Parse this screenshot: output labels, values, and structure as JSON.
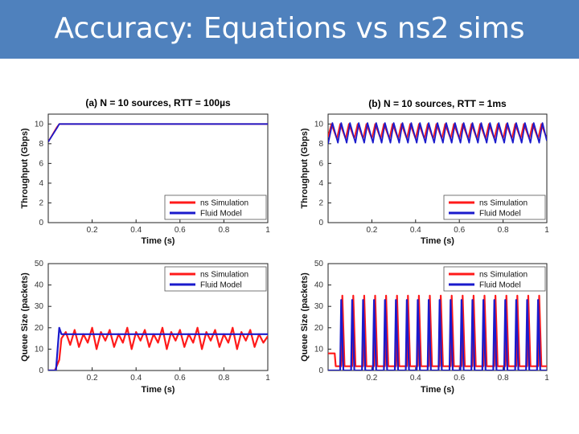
{
  "slide": {
    "title": "Accuracy: Equations vs ns2 sims"
  },
  "colors": {
    "title_bar": "#4f81bd",
    "title_text": "#ffffff",
    "ns": "#ff1a1a",
    "fluid": "#1a1acc"
  },
  "chart_data": [
    {
      "id": "a-throughput",
      "type": "line",
      "title": "(a) N = 10 sources, RTT = 100µs",
      "xlabel": "Time (s)",
      "ylabel": "Throughput (Gbps)",
      "xlim": [
        0,
        1
      ],
      "ylim": [
        0,
        11
      ],
      "xticks": [
        "0.2",
        "0.4",
        "0.6",
        "0.8",
        "1"
      ],
      "yticks": [
        "0",
        "2",
        "4",
        "6",
        "8",
        "10"
      ],
      "legend": [
        "ns Simulation",
        "Fluid Model"
      ],
      "legend_position": "bottom-right",
      "series": [
        {
          "name": "ns Simulation",
          "x": [
            0,
            0.04,
            0.05,
            0.055,
            1
          ],
          "y": [
            8.2,
            9.7,
            10.0,
            10.0,
            10.0
          ]
        },
        {
          "name": "Fluid Model",
          "x": [
            0,
            0.04,
            0.05,
            0.055,
            1
          ],
          "y": [
            8.2,
            9.6,
            10.0,
            10.0,
            10.0
          ]
        }
      ]
    },
    {
      "id": "b-throughput",
      "type": "line",
      "title": "(b) N = 10 sources, RTT = 1ms",
      "xlabel": "Time (s)",
      "ylabel": "Throughput (Gbps)",
      "xlim": [
        0,
        1
      ],
      "ylim": [
        0,
        11
      ],
      "xticks": [
        "0.2",
        "0.4",
        "0.6",
        "0.8",
        "1"
      ],
      "yticks": [
        "0",
        "2",
        "4",
        "6",
        "8",
        "10"
      ],
      "legend": [
        "ns Simulation",
        "Fluid Model"
      ],
      "legend_position": "bottom-right",
      "series": [
        {
          "name": "ns Simulation",
          "x": [
            0,
            0.015,
            0.04,
            0.055,
            0.08,
            0.095,
            0.12,
            0.135,
            0.16,
            0.175,
            0.2,
            0.215,
            0.24,
            0.255,
            0.28,
            0.295,
            0.32,
            0.335,
            0.36,
            0.375,
            0.4,
            0.415,
            0.44,
            0.455,
            0.48,
            0.495,
            0.52,
            0.535,
            0.56,
            0.575,
            0.6,
            0.615,
            0.64,
            0.655,
            0.68,
            0.695,
            0.72,
            0.735,
            0.76,
            0.775,
            0.8,
            0.815,
            0.84,
            0.855,
            0.88,
            0.895,
            0.92,
            0.935,
            0.96,
            0.975,
            1.0
          ],
          "y": [
            8.7,
            10.0,
            8.5,
            10.0,
            8.5,
            10.0,
            8.5,
            10.0,
            8.5,
            10.0,
            8.5,
            10.0,
            8.5,
            10.0,
            8.5,
            10.0,
            8.5,
            10.0,
            8.5,
            10.0,
            8.5,
            10.0,
            8.5,
            10.0,
            8.5,
            10.0,
            8.5,
            10.0,
            8.5,
            10.0,
            8.5,
            10.0,
            8.5,
            10.0,
            8.5,
            10.0,
            8.5,
            10.0,
            8.5,
            10.0,
            8.5,
            10.0,
            8.5,
            10.0,
            8.5,
            10.0,
            8.5,
            10.0,
            8.5,
            10.0,
            8.5
          ]
        },
        {
          "name": "Fluid Model",
          "x": [
            0,
            0.02,
            0.045,
            0.06,
            0.085,
            0.1,
            0.125,
            0.14,
            0.165,
            0.18,
            0.205,
            0.22,
            0.245,
            0.26,
            0.285,
            0.3,
            0.325,
            0.34,
            0.365,
            0.38,
            0.405,
            0.42,
            0.445,
            0.46,
            0.485,
            0.5,
            0.525,
            0.54,
            0.565,
            0.58,
            0.605,
            0.62,
            0.645,
            0.66,
            0.685,
            0.7,
            0.725,
            0.74,
            0.765,
            0.78,
            0.805,
            0.82,
            0.845,
            0.86,
            0.885,
            0.9,
            0.925,
            0.94,
            0.965,
            0.98,
            1.0
          ],
          "y": [
            8.0,
            10.1,
            8.1,
            10.1,
            8.1,
            10.1,
            8.1,
            10.1,
            8.1,
            10.1,
            8.1,
            10.1,
            8.1,
            10.1,
            8.1,
            10.1,
            8.1,
            10.1,
            8.1,
            10.1,
            8.1,
            10.1,
            8.1,
            10.1,
            8.1,
            10.1,
            8.1,
            10.1,
            8.1,
            10.1,
            8.1,
            10.1,
            8.1,
            10.1,
            8.1,
            10.1,
            8.1,
            10.1,
            8.1,
            10.1,
            8.1,
            10.1,
            8.1,
            10.1,
            8.1,
            10.1,
            8.1,
            10.1,
            8.1,
            10.1,
            8.3
          ]
        }
      ]
    },
    {
      "id": "a-queue",
      "type": "line",
      "title": "",
      "xlabel": "Time (s)",
      "ylabel": "Queue Size (packets)",
      "xlim": [
        0,
        1
      ],
      "ylim": [
        0,
        50
      ],
      "xticks": [
        "0.2",
        "0.4",
        "0.6",
        "0.8",
        "1"
      ],
      "yticks": [
        "0",
        "10",
        "20",
        "30",
        "40",
        "50"
      ],
      "legend": [
        "ns Simulation",
        "Fluid Model"
      ],
      "legend_position": "top-right",
      "series": [
        {
          "name": "ns Simulation",
          "x": [
            0,
            0.03,
            0.05,
            0.06,
            0.08,
            0.1,
            0.12,
            0.14,
            0.16,
            0.18,
            0.2,
            0.22,
            0.24,
            0.26,
            0.28,
            0.3,
            0.32,
            0.34,
            0.36,
            0.38,
            0.4,
            0.42,
            0.44,
            0.46,
            0.48,
            0.5,
            0.52,
            0.54,
            0.56,
            0.58,
            0.6,
            0.62,
            0.64,
            0.66,
            0.68,
            0.7,
            0.72,
            0.74,
            0.76,
            0.78,
            0.8,
            0.82,
            0.84,
            0.86,
            0.88,
            0.9,
            0.92,
            0.94,
            0.96,
            0.98,
            1.0
          ],
          "y": [
            0,
            0,
            5,
            15,
            18,
            12,
            19,
            11,
            17,
            13,
            20,
            10,
            18,
            14,
            19,
            11,
            17,
            13,
            20,
            10,
            18,
            14,
            19,
            11,
            17,
            13,
            20,
            10,
            18,
            14,
            19,
            11,
            17,
            13,
            20,
            10,
            18,
            14,
            19,
            11,
            17,
            13,
            20,
            10,
            18,
            14,
            19,
            11,
            17,
            13,
            16
          ]
        },
        {
          "name": "Fluid Model",
          "x": [
            0,
            0.035,
            0.05,
            0.06,
            0.07,
            1.0
          ],
          "y": [
            0,
            0,
            20,
            17,
            17,
            17
          ]
        }
      ]
    },
    {
      "id": "b-queue",
      "type": "line",
      "title": "",
      "xlabel": "Time (s)",
      "ylabel": "Queue Size (packets)",
      "xlim": [
        0,
        1
      ],
      "ylim": [
        0,
        50
      ],
      "xticks": [
        "0.2",
        "0.4",
        "0.6",
        "0.8",
        "1"
      ],
      "yticks": [
        "0",
        "10",
        "20",
        "30",
        "40",
        "50"
      ],
      "legend": [
        "ns Simulation",
        "Fluid Model"
      ],
      "legend_position": "top-right",
      "series": [
        {
          "name": "ns Simulation",
          "x": [
            0,
            0.03,
            0.035,
            0.06,
            0.065,
            0.075,
            0.085,
            0.11,
            0.115,
            0.125,
            0.135,
            0.16,
            0.165,
            0.175,
            0.185,
            0.21,
            0.215,
            0.225,
            0.235,
            0.26,
            0.265,
            0.275,
            0.285,
            0.31,
            0.315,
            0.325,
            0.335,
            0.36,
            0.365,
            0.375,
            0.385,
            0.41,
            0.415,
            0.425,
            0.435,
            0.46,
            0.465,
            0.475,
            0.485,
            0.51,
            0.515,
            0.525,
            0.535,
            0.56,
            0.565,
            0.575,
            0.585,
            0.61,
            0.615,
            0.625,
            0.635,
            0.66,
            0.665,
            0.675,
            0.685,
            0.71,
            0.715,
            0.725,
            0.735,
            0.76,
            0.765,
            0.775,
            0.785,
            0.81,
            0.815,
            0.825,
            0.835,
            0.86,
            0.865,
            0.875,
            0.885,
            0.91,
            0.915,
            0.925,
            0.935,
            0.96,
            0.965,
            0.975,
            0.985,
            1.0
          ],
          "y": [
            8,
            8,
            2,
            2,
            35,
            2,
            2,
            2,
            35,
            2,
            2,
            2,
            35,
            2,
            2,
            2,
            35,
            2,
            2,
            2,
            35,
            2,
            2,
            2,
            35,
            2,
            2,
            2,
            35,
            2,
            2,
            2,
            35,
            2,
            2,
            2,
            35,
            2,
            2,
            2,
            35,
            2,
            2,
            2,
            35,
            2,
            2,
            2,
            35,
            2,
            2,
            2,
            35,
            2,
            2,
            2,
            35,
            2,
            2,
            2,
            35,
            2,
            2,
            2,
            35,
            2,
            2,
            2,
            35,
            2,
            2,
            2,
            35,
            2,
            2,
            2,
            35,
            2,
            2,
            2
          ]
        },
        {
          "name": "Fluid Model",
          "x": [
            0,
            0.03,
            0.035,
            0.055,
            0.06,
            0.07,
            0.08,
            0.105,
            0.11,
            0.12,
            0.13,
            0.155,
            0.16,
            0.17,
            0.18,
            0.205,
            0.21,
            0.22,
            0.23,
            0.255,
            0.26,
            0.27,
            0.28,
            0.305,
            0.31,
            0.32,
            0.33,
            0.355,
            0.36,
            0.37,
            0.38,
            0.405,
            0.41,
            0.42,
            0.43,
            0.455,
            0.46,
            0.47,
            0.48,
            0.505,
            0.51,
            0.52,
            0.53,
            0.555,
            0.56,
            0.57,
            0.58,
            0.605,
            0.61,
            0.62,
            0.63,
            0.655,
            0.66,
            0.67,
            0.68,
            0.705,
            0.71,
            0.72,
            0.73,
            0.755,
            0.76,
            0.77,
            0.78,
            0.805,
            0.81,
            0.82,
            0.83,
            0.855,
            0.86,
            0.87,
            0.88,
            0.905,
            0.91,
            0.92,
            0.93,
            0.955,
            0.96,
            0.97,
            0.98,
            1.0
          ],
          "y": [
            0,
            0,
            0,
            0,
            33,
            0,
            0,
            0,
            33,
            0,
            0,
            0,
            33,
            0,
            0,
            0,
            33,
            0,
            0,
            0,
            33,
            0,
            0,
            0,
            33,
            0,
            0,
            0,
            33,
            0,
            0,
            0,
            33,
            0,
            0,
            0,
            33,
            0,
            0,
            0,
            33,
            0,
            0,
            0,
            33,
            0,
            0,
            0,
            33,
            0,
            0,
            0,
            33,
            0,
            0,
            0,
            33,
            0,
            0,
            0,
            33,
            0,
            0,
            0,
            33,
            0,
            0,
            0,
            33,
            0,
            0,
            0,
            33,
            0,
            0,
            0,
            33,
            0,
            0,
            0
          ]
        }
      ]
    }
  ]
}
